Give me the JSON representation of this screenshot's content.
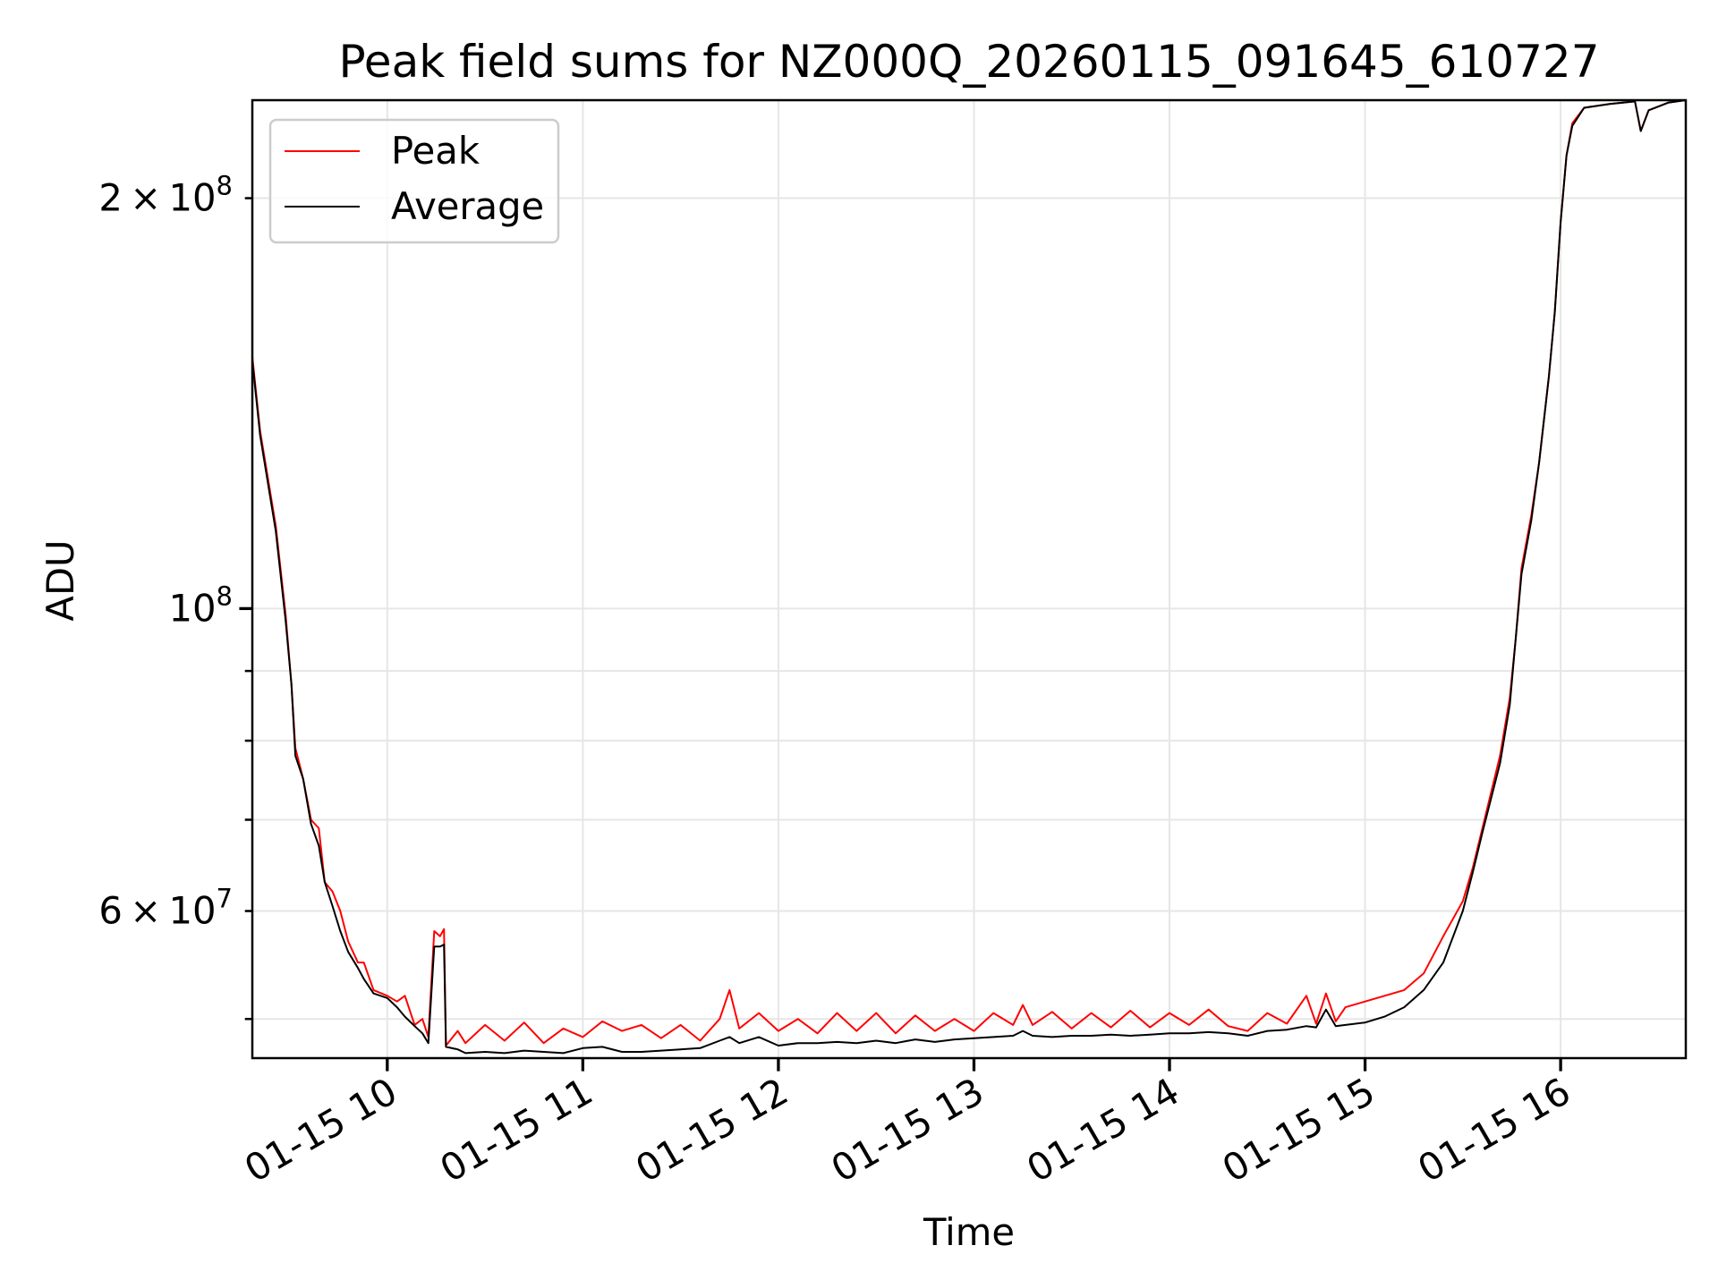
{
  "chart_data": {
    "type": "line",
    "title": "Peak field sums for NZ000Q_20260115_091645_610727",
    "xlabel": "Time",
    "ylabel": "ADU",
    "yscale": "log",
    "xlim_hours": [
      9.31,
      16.64
    ],
    "ylim": [
      46800000,
      236000000
    ],
    "grid": true,
    "legend_placement": "upper-left",
    "x_ticks": [
      {
        "value": 10,
        "label": "01-15 10"
      },
      {
        "value": 11,
        "label": "01-15 11"
      },
      {
        "value": 12,
        "label": "01-15 12"
      },
      {
        "value": 13,
        "label": "01-15 13"
      },
      {
        "value": 14,
        "label": "01-15 14"
      },
      {
        "value": 15,
        "label": "01-15 15"
      },
      {
        "value": 16,
        "label": "01-15 16"
      }
    ],
    "y_ticks_major": [
      {
        "value": 100000000,
        "base": "10",
        "exp": "8"
      }
    ],
    "y_ticks_minor_labeled": [
      {
        "value": 200000000,
        "mant": "2",
        "base": "10",
        "exp": "8"
      },
      {
        "value": 60000000,
        "mant": "6",
        "base": "10",
        "exp": "7"
      }
    ],
    "y_ticks_minor": [
      50000000,
      60000000,
      70000000,
      80000000,
      90000000,
      200000000
    ],
    "x_hours": [
      9.31,
      9.35,
      9.43,
      9.48,
      9.51,
      9.53,
      9.57,
      9.61,
      9.65,
      9.68,
      9.72,
      9.76,
      9.8,
      9.85,
      9.88,
      9.93,
      10.0,
      10.05,
      10.09,
      10.14,
      10.18,
      10.21,
      10.24,
      10.27,
      10.29,
      10.3,
      10.36,
      10.4,
      10.5,
      10.6,
      10.7,
      10.8,
      10.9,
      11.0,
      11.1,
      11.2,
      11.3,
      11.4,
      11.5,
      11.6,
      11.7,
      11.75,
      11.8,
      11.9,
      12.0,
      12.1,
      12.2,
      12.3,
      12.4,
      12.5,
      12.6,
      12.7,
      12.8,
      12.9,
      13.0,
      13.1,
      13.2,
      13.25,
      13.3,
      13.4,
      13.5,
      13.6,
      13.7,
      13.8,
      13.9,
      14.0,
      14.1,
      14.2,
      14.3,
      14.4,
      14.5,
      14.6,
      14.7,
      14.75,
      14.8,
      14.85,
      14.9,
      15.0,
      15.1,
      15.2,
      15.3,
      15.4,
      15.5,
      15.55,
      15.6,
      15.69,
      15.74,
      15.77,
      15.8,
      15.85,
      15.89,
      15.94,
      15.97,
      16.0,
      16.03,
      16.06,
      16.12,
      16.25,
      16.38,
      16.41,
      16.45,
      16.55,
      16.64
    ],
    "series": [
      {
        "name": "Peak",
        "color": "#ff0000",
        "values": [
          153000000.0,
          135000000.0,
          115000000.0,
          99000000.0,
          88000000.0,
          79000000.0,
          75000000.0,
          70000000.0,
          69000000.0,
          63000000.0,
          62000000.0,
          60000000.0,
          57000000.0,
          55000000.0,
          55000000.0,
          52500000.0,
          52000000.0,
          51500000.0,
          52000000.0,
          49500000.0,
          50000000.0,
          48500000.0,
          58000000.0,
          57500000.0,
          58200000.0,
          47800000.0,
          49000000.0,
          48000000.0,
          49500000.0,
          48200000.0,
          49700000.0,
          48000000.0,
          49200000.0,
          48500000.0,
          49800000.0,
          49000000.0,
          49500000.0,
          48400000.0,
          49500000.0,
          48200000.0,
          50000000.0,
          52500000.0,
          49200000.0,
          50500000.0,
          49000000.0,
          50000000.0,
          48800000.0,
          50500000.0,
          49000000.0,
          50500000.0,
          48800000.0,
          50300000.0,
          49000000.0,
          50000000.0,
          49000000.0,
          50500000.0,
          49500000.0,
          51200000.0,
          49500000.0,
          50600000.0,
          49200000.0,
          50500000.0,
          49300000.0,
          50700000.0,
          49300000.0,
          50500000.0,
          49500000.0,
          50800000.0,
          49400000.0,
          49000000.0,
          50500000.0,
          49600000.0,
          52000000.0,
          49600000.0,
          52200000.0,
          49800000.0,
          51000000.0,
          51500000.0,
          52000000.0,
          52500000.0,
          54000000.0,
          57500000.0,
          61000000.0,
          64500000.0,
          69000000.0,
          78000000.0,
          86000000.0,
          95000000.0,
          107000000.0,
          117000000.0,
          128000000.0,
          148000000.0,
          165000000.0,
          192000000.0,
          215000000.0,
          227000000.0,
          233000000.0,
          234500000.0,
          235500000.0,
          224000000.0,
          232000000.0,
          235000000.0,
          236000000.0
        ]
      },
      {
        "name": "Average",
        "color": "#000000",
        "values": [
          152000000.0,
          134000000.0,
          114000000.0,
          98000000.0,
          88000000.0,
          78000000.0,
          75000000.0,
          69500000.0,
          67000000.0,
          63000000.0,
          60500000.0,
          58000000.0,
          56000000.0,
          54500000.0,
          53500000.0,
          52200000.0,
          51800000.0,
          51000000.0,
          50200000.0,
          49400000.0,
          48800000.0,
          48000000.0,
          56500000.0,
          56500000.0,
          56700000.0,
          47700000.0,
          47500000.0,
          47200000.0,
          47300000.0,
          47200000.0,
          47400000.0,
          47300000.0,
          47200000.0,
          47600000.0,
          47700000.0,
          47300000.0,
          47300000.0,
          47400000.0,
          47500000.0,
          47600000.0,
          48200000.0,
          48500000.0,
          48000000.0,
          48500000.0,
          47800000.0,
          48000000.0,
          48000000.0,
          48100000.0,
          48000000.0,
          48200000.0,
          48000000.0,
          48300000.0,
          48100000.0,
          48300000.0,
          48400000.0,
          48500000.0,
          48600000.0,
          49000000.0,
          48600000.0,
          48500000.0,
          48600000.0,
          48600000.0,
          48700000.0,
          48600000.0,
          48700000.0,
          48800000.0,
          48800000.0,
          48900000.0,
          48800000.0,
          48600000.0,
          49000000.0,
          49100000.0,
          49400000.0,
          49300000.0,
          50800000.0,
          49400000.0,
          49500000.0,
          49700000.0,
          50200000.0,
          51000000.0,
          52500000.0,
          55000000.0,
          60000000.0,
          64000000.0,
          68500000.0,
          77000000.0,
          85000000.0,
          95000000.0,
          106000000.0,
          116000000.0,
          128000000.0,
          148000000.0,
          165000000.0,
          192000000.0,
          215000000.0,
          226000000.0,
          233000000.0,
          234500000.0,
          235500000.0,
          224000000.0,
          232000000.0,
          235000000.0,
          236000000.0
        ]
      }
    ]
  }
}
